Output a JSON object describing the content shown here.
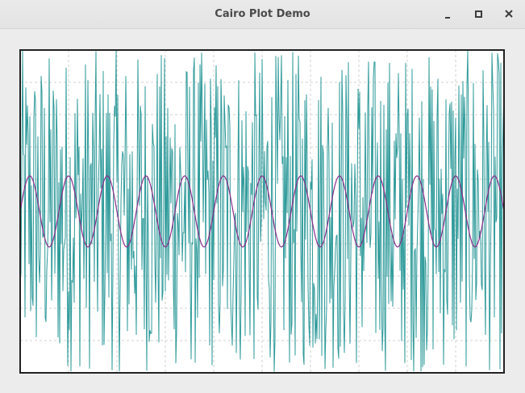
{
  "window": {
    "title": "Cairo Plot Demo",
    "buttons": {
      "minimize": "minimize",
      "maximize": "maximize",
      "close": "close"
    }
  },
  "colors": {
    "noise_line": "#2f9a9a",
    "sine_line": "#8a2e8a",
    "grid": "#d0d0d0",
    "frame": "#222222",
    "plot_bg": "#ffffff"
  },
  "chart_data": {
    "type": "line",
    "title": "",
    "xlabel": "",
    "ylabel": "",
    "xlim": [
      0,
      1
    ],
    "ylim": [
      -1,
      1
    ],
    "grid": true,
    "series": [
      {
        "style": "noise",
        "samples": 600,
        "amplitude": 1.0
      },
      {
        "style": "sine",
        "cycles": 12.5,
        "amplitude": 0.22
      }
    ]
  }
}
